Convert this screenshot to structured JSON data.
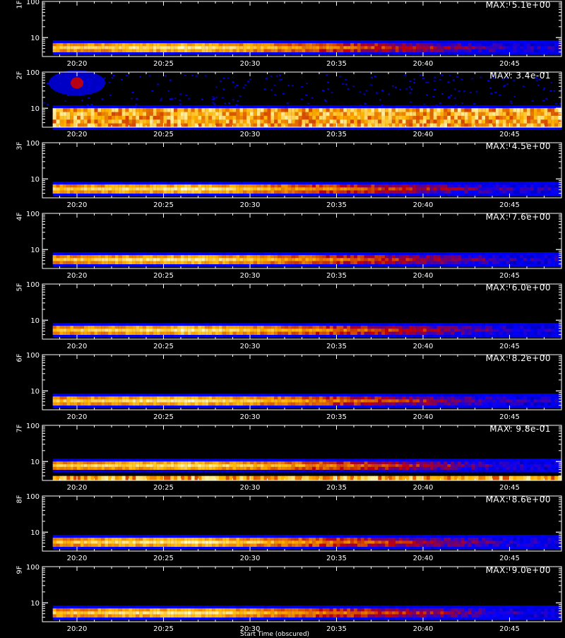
{
  "colors": {
    "frame": "#ffffff",
    "background": "#000000"
  },
  "chart_data": {
    "type": "heatmap",
    "colormap": "black-blue-red-yellow-white",
    "x_ticks": [
      "20:20",
      "20:25",
      "20:30",
      "20:35",
      "20:40",
      "20:45"
    ],
    "x_range": [
      "20:18",
      "20:48"
    ],
    "y_scale": "log",
    "y_ticks": [
      "10",
      "100"
    ],
    "y_range": [
      3,
      100
    ],
    "xlabel": "Start Time (obscured)",
    "panels": [
      {
        "label": "1F",
        "max": "MAX: 5.1e+00",
        "band_low": 4,
        "band_high": 7,
        "peak_time": "20:26",
        "lower_saturated": false,
        "blob": null
      },
      {
        "label": "2F",
        "max": "MAX: 3.4e-01",
        "band_low": 3,
        "band_high": 10,
        "peak_time": null,
        "lower_saturated": true,
        "blob": {
          "time": "20:20",
          "y": 50
        }
      },
      {
        "label": "3F",
        "max": "MAX: 4.5e+00",
        "band_low": 4,
        "band_high": 7,
        "peak_time": "20:26",
        "lower_saturated": false,
        "blob": null
      },
      {
        "label": "4F",
        "max": "MAX: 7.6e+00",
        "band_low": 4,
        "band_high": 7,
        "peak_time": "20:26",
        "lower_saturated": false,
        "blob": null
      },
      {
        "label": "5F",
        "max": "MAX: 6.0e+00",
        "band_low": 4,
        "band_high": 7,
        "peak_time": "20:26",
        "lower_saturated": false,
        "blob": null
      },
      {
        "label": "6F",
        "max": "MAX: 8.2e+00",
        "band_low": 4,
        "band_high": 7,
        "peak_time": "20:26",
        "lower_saturated": false,
        "blob": null
      },
      {
        "label": "7F",
        "max": "MAX: 9.8e-01",
        "band_low": 6,
        "band_high": 10,
        "peak_time": "20:26",
        "lower_saturated": true,
        "blob": null
      },
      {
        "label": "8F",
        "max": "MAX: 8.6e+00",
        "band_low": 4,
        "band_high": 7,
        "peak_time": "20:26",
        "lower_saturated": false,
        "blob": null
      },
      {
        "label": "9F",
        "max": "MAX: 9.0e+00",
        "band_low": 4,
        "band_high": 7,
        "peak_time": "20:26",
        "lower_saturated": false,
        "blob": null
      }
    ]
  }
}
